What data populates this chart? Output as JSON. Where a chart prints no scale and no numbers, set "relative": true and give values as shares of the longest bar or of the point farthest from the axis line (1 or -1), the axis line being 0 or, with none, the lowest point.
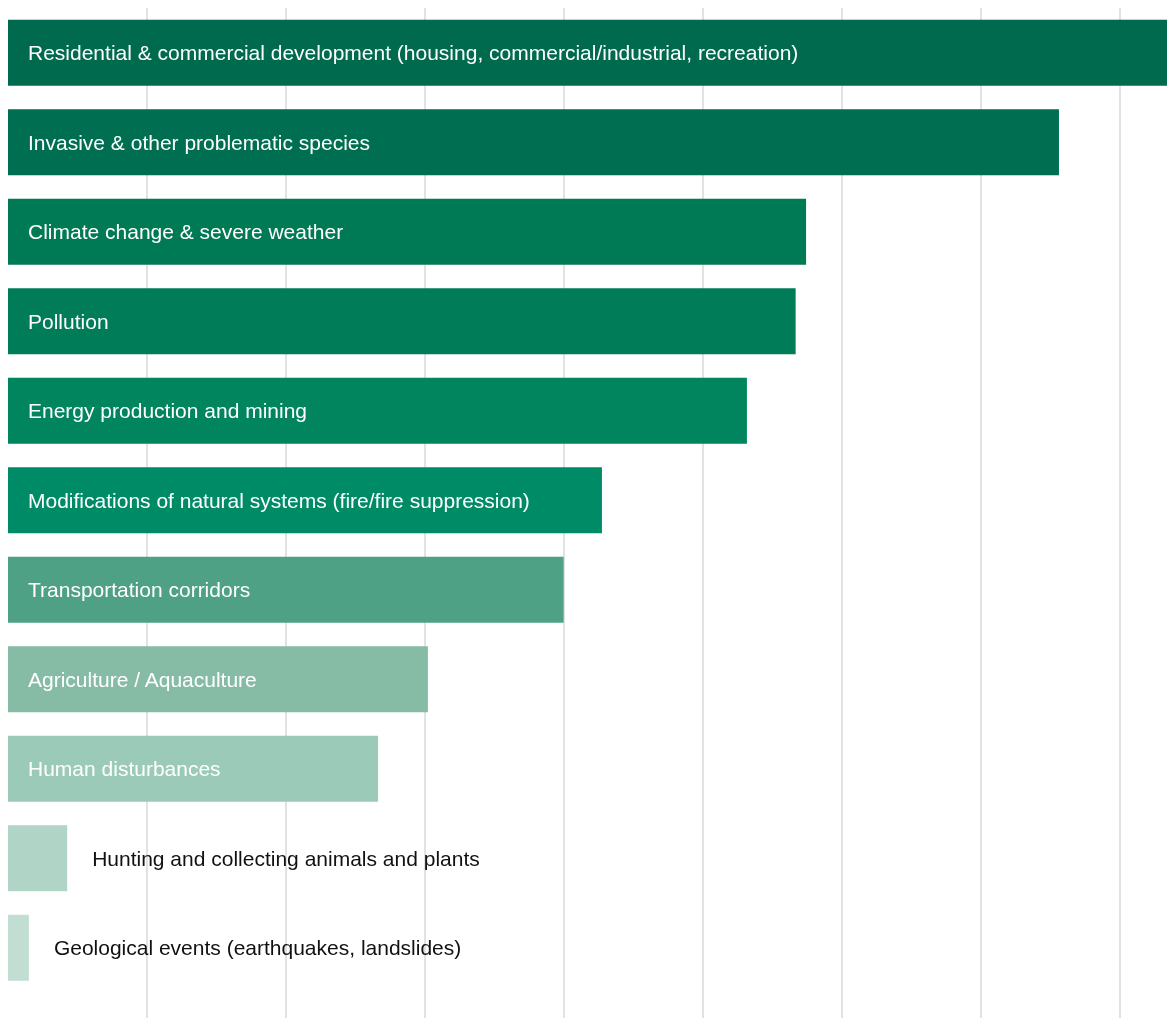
{
  "chart_data": {
    "type": "bar",
    "orientation": "horizontal",
    "relative": true,
    "grid": "x",
    "data_labels": false,
    "categories": [
      "Residential & commercial development (housing, commercial/industrial, recreation)",
      "Invasive & other problematic species",
      "Climate change & severe weather",
      "Pollution",
      "Energy production and mining",
      "Modifications of natural systems (fire/fire suppression)",
      "Transportation corridors",
      "Agriculture / Aquaculture",
      "Human disturbances",
      "Hunting and collecting animals and plants",
      "Geological events (earthquakes, landslides)"
    ],
    "values": [
      1,
      0.906,
      0.688,
      0.679,
      0.637,
      0.512,
      0.479,
      0.362,
      0.319,
      0.051,
      0.018
    ],
    "colors": [
      "#006a4e",
      "#006e50",
      "#007955",
      "#007c58",
      "#00855e",
      "#008b67",
      "#4ea184",
      "#86bca6",
      "#9ccab8",
      "#b0d5c7",
      "#c2ddd2"
    ]
  }
}
